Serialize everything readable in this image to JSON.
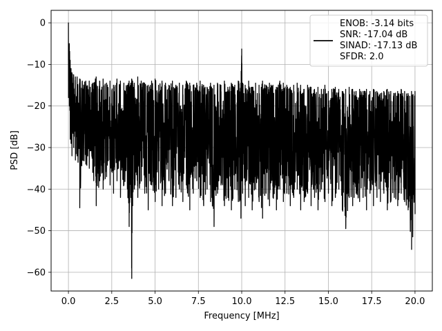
{
  "chart_data": {
    "type": "line",
    "xlabel": "Frequency [MHz]",
    "ylabel": "PSD [dB]",
    "xlim": [
      -1.0,
      21.0
    ],
    "ylim": [
      -64.5,
      3.0
    ],
    "xticks": [
      0.0,
      2.5,
      5.0,
      7.5,
      10.0,
      12.5,
      15.0,
      17.5,
      20.0
    ],
    "xtick_labels": [
      "0.0",
      "2.5",
      "5.0",
      "7.5",
      "10.0",
      "12.5",
      "15.0",
      "17.5",
      "20.0"
    ],
    "yticks": [
      0,
      -10,
      -20,
      -30,
      -40,
      -50,
      -60
    ],
    "ytick_labels": [
      "0",
      "−10",
      "−20",
      "−30",
      "−40",
      "−50",
      "−60"
    ],
    "grid": true,
    "legend": {
      "placement": "top-right",
      "lines": [
        "ENOB: -3.14 bits",
        "SNR: -17.04 dB",
        "SINAD: -17.13 dB",
        "SFDR: 2.0"
      ]
    },
    "series": [
      {
        "color": "#000000",
        "x": [
          0.0,
          0.05,
          0.1,
          0.15,
          0.2,
          0.3,
          0.4,
          0.5,
          0.65,
          0.8,
          1.0,
          1.2,
          1.4,
          1.6,
          1.8,
          2.0,
          2.2,
          2.4,
          2.6,
          2.8,
          3.0,
          3.2,
          3.4,
          3.5,
          3.6,
          3.65,
          3.7,
          3.8,
          4.0,
          4.2,
          4.4,
          4.6,
          4.8,
          5.0,
          5.2,
          5.4,
          5.6,
          5.8,
          6.0,
          6.2,
          6.4,
          6.6,
          6.8,
          7.0,
          7.2,
          7.4,
          7.6,
          7.8,
          8.0,
          8.2,
          8.4,
          8.6,
          8.8,
          9.0,
          9.2,
          9.4,
          9.6,
          9.8,
          9.95,
          10.0,
          10.05,
          10.2,
          10.4,
          10.6,
          10.8,
          11.0,
          11.2,
          11.4,
          11.6,
          11.8,
          12.0,
          12.2,
          12.4,
          12.6,
          12.8,
          13.0,
          13.2,
          13.4,
          13.6,
          13.8,
          14.0,
          14.2,
          14.4,
          14.6,
          14.8,
          15.0,
          15.2,
          15.4,
          15.6,
          15.8,
          16.0,
          16.2,
          16.4,
          16.6,
          16.8,
          17.0,
          17.2,
          17.4,
          17.6,
          17.8,
          18.0,
          18.2,
          18.4,
          18.6,
          18.8,
          19.0,
          19.2,
          19.4,
          19.6,
          19.8,
          20.0
        ],
        "upper": [
          0.0,
          -5.0,
          -9.0,
          -11.0,
          -12.0,
          -12.5,
          -13.0,
          -13.0,
          -13.5,
          -14.0,
          -14.0,
          -14.0,
          -14.5,
          -13.0,
          -14.0,
          -13.5,
          -14.5,
          -14.0,
          -15.0,
          -13.5,
          -14.0,
          -14.5,
          -15.0,
          -14.0,
          -14.5,
          -13.5,
          -14.0,
          -14.5,
          -13.0,
          -14.0,
          -14.5,
          -15.0,
          -14.0,
          -13.5,
          -15.0,
          -14.0,
          -14.5,
          -15.0,
          -14.0,
          -15.0,
          -14.5,
          -15.0,
          -14.0,
          -14.5,
          -15.0,
          -14.5,
          -14.0,
          -15.0,
          -15.5,
          -14.5,
          -15.0,
          -14.5,
          -15.0,
          -14.0,
          -15.5,
          -14.5,
          -15.0,
          -14.0,
          -14.5,
          -6.3,
          -14.5,
          -15.0,
          -14.0,
          -15.5,
          -14.5,
          -15.0,
          -14.0,
          -15.0,
          -14.5,
          -15.0,
          -15.5,
          -14.0,
          -14.5,
          -15.0,
          -15.5,
          -15.0,
          -14.5,
          -15.0,
          -16.0,
          -15.0,
          -15.5,
          -16.0,
          -15.5,
          -16.0,
          -15.0,
          -16.5,
          -16.0,
          -15.5,
          -16.0,
          -16.5,
          -16.0,
          -15.5,
          -16.0,
          -16.5,
          -16.0,
          -16.5,
          -16.0,
          -16.5,
          -16.0,
          -16.5,
          -17.0,
          -16.5,
          -16.0,
          -16.5,
          -17.0,
          -16.5,
          -16.0,
          -16.5,
          -17.0,
          -16.5,
          -16.5
        ],
        "lower": [
          -18.0,
          -20.0,
          -28.0,
          -29.0,
          -32.0,
          -30.0,
          -33.0,
          -32.0,
          -44.5,
          -33.0,
          -34.0,
          -35.0,
          -36.0,
          -44.0,
          -38.0,
          -40.0,
          -37.0,
          -39.0,
          -41.0,
          -38.0,
          -42.0,
          -39.0,
          -40.0,
          -49.0,
          -42.0,
          -61.5,
          -44.0,
          -40.0,
          -42.0,
          -38.0,
          -41.0,
          -45.0,
          -39.0,
          -43.0,
          -40.0,
          -44.0,
          -41.0,
          -38.0,
          -44.0,
          -42.0,
          -40.0,
          -43.0,
          -39.0,
          -45.0,
          -41.0,
          -38.0,
          -42.0,
          -44.0,
          -40.0,
          -43.0,
          -49.0,
          -41.0,
          -39.0,
          -44.0,
          -42.0,
          -45.0,
          -40.0,
          -43.0,
          -47.0,
          -38.0,
          -41.0,
          -44.0,
          -42.0,
          -45.0,
          -40.0,
          -43.0,
          -47.0,
          -41.0,
          -44.0,
          -42.0,
          -45.0,
          -40.0,
          -43.0,
          -41.0,
          -44.0,
          -42.0,
          -40.0,
          -45.0,
          -43.0,
          -41.0,
          -44.0,
          -42.0,
          -45.0,
          -40.0,
          -43.0,
          -41.0,
          -44.0,
          -42.0,
          -40.0,
          -45.0,
          -49.5,
          -42.0,
          -44.0,
          -41.0,
          -43.0,
          -42.0,
          -45.0,
          -41.0,
          -44.0,
          -42.0,
          -43.0,
          -41.0,
          -45.0,
          -43.0,
          -42.0,
          -44.0,
          -41.0,
          -43.0,
          -45.0,
          -54.5,
          -46.0
        ]
      }
    ]
  }
}
